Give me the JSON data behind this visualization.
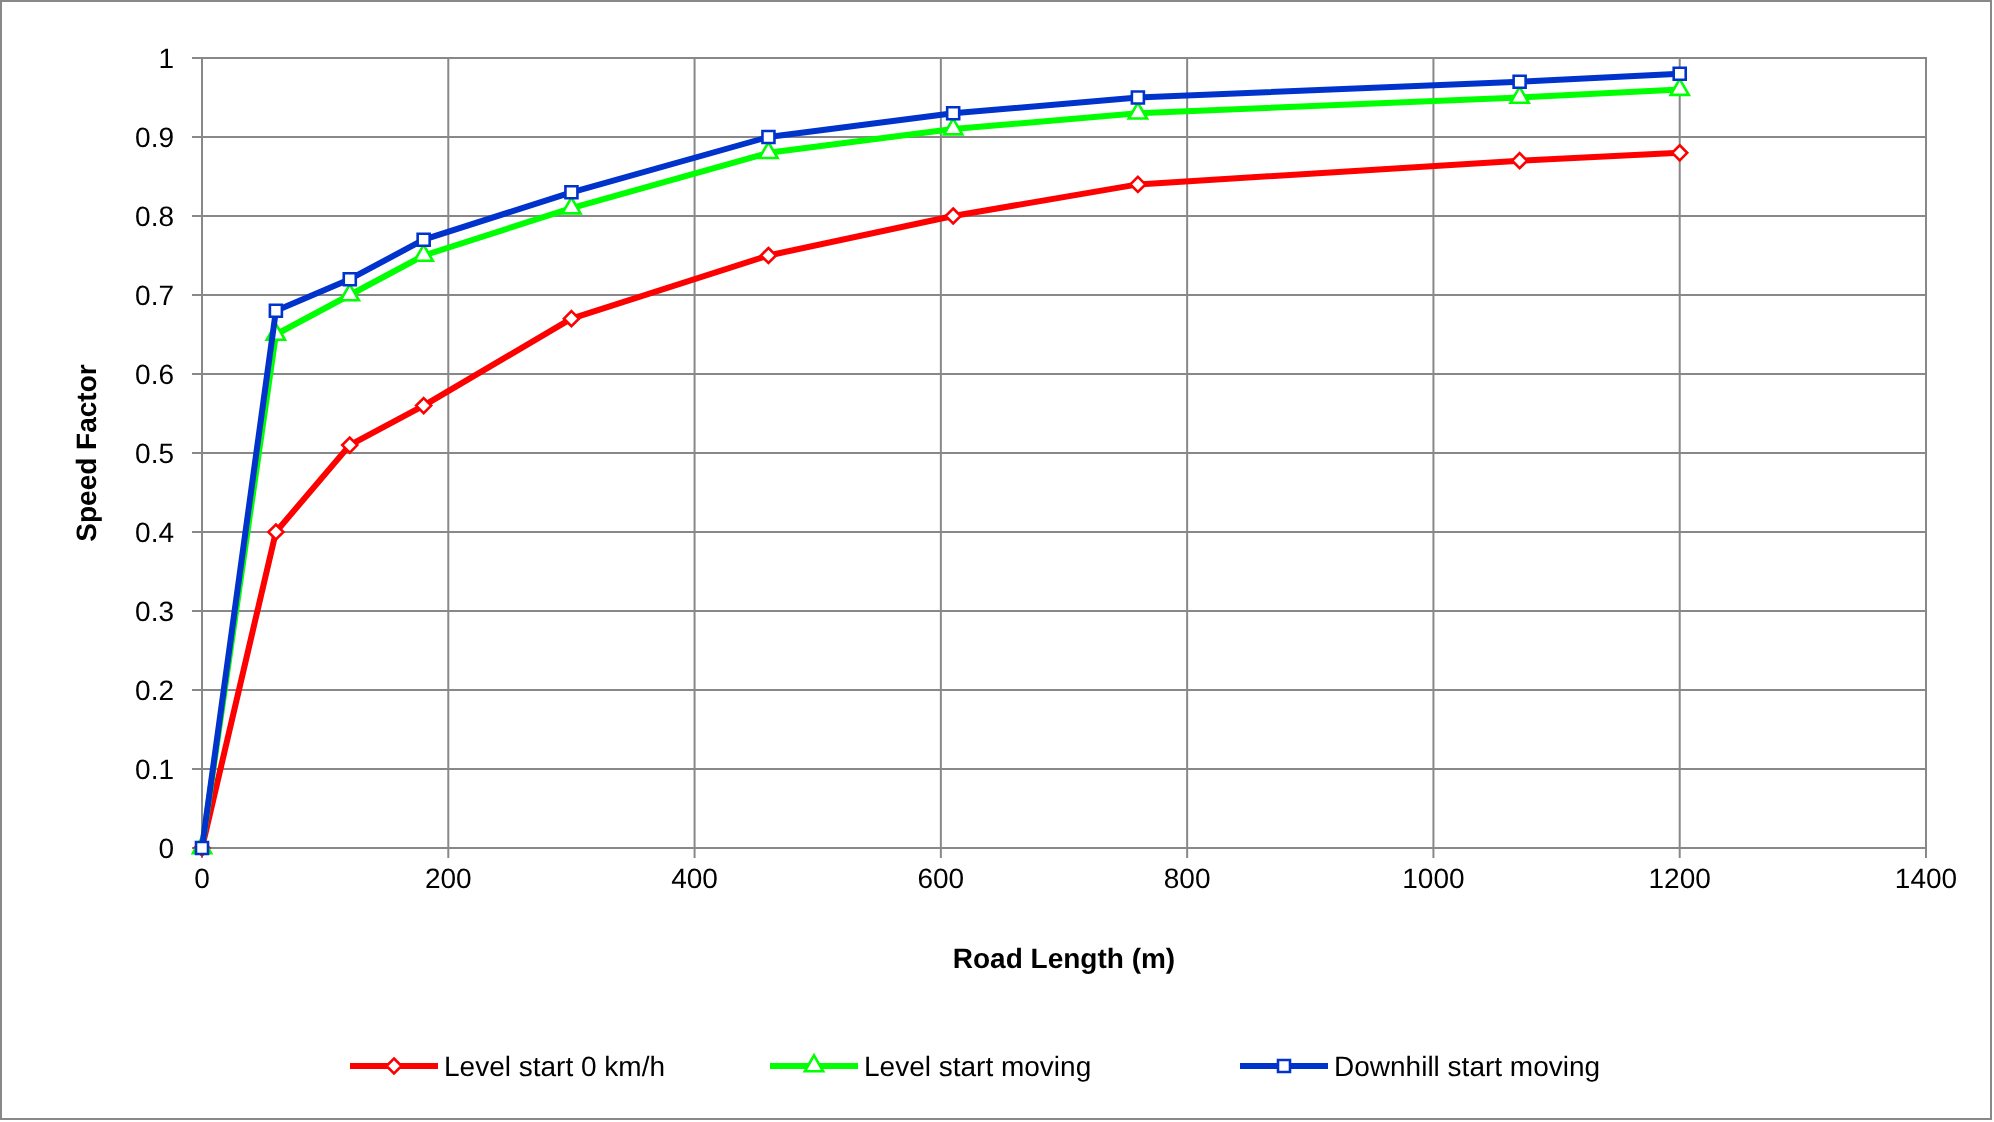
{
  "chart_data": {
    "type": "line",
    "xlabel": "Road Length (m)",
    "ylabel": "Speed Factor",
    "x": [
      0,
      60,
      120,
      180,
      300,
      460,
      610,
      760,
      1070,
      1200
    ],
    "xlim": [
      0,
      1400
    ],
    "xticks": [
      0,
      200,
      400,
      600,
      800,
      1000,
      1200,
      1400
    ],
    "ylim": [
      0,
      1
    ],
    "yticks": [
      0,
      0.1,
      0.2,
      0.3,
      0.4,
      0.5,
      0.6,
      0.7,
      0.8,
      0.9,
      1
    ],
    "grid": true,
    "legend": "bottom",
    "line_style": "solid",
    "series": [
      {
        "name": "Level start 0 km/h",
        "color": "#ff0000",
        "marker": "diamond",
        "values": [
          0,
          0.4,
          0.51,
          0.56,
          0.67,
          0.75,
          0.8,
          0.84,
          0.87,
          0.88
        ]
      },
      {
        "name": "Level start moving",
        "color": "#00ff00",
        "marker": "triangle",
        "values": [
          0,
          0.65,
          0.7,
          0.75,
          0.81,
          0.88,
          0.91,
          0.93,
          0.95,
          0.96
        ]
      },
      {
        "name": "Downhill start moving",
        "color": "#0033cc",
        "marker": "square",
        "values": [
          0,
          0.68,
          0.72,
          0.77,
          0.83,
          0.9,
          0.93,
          0.95,
          0.97,
          0.98
        ]
      }
    ]
  }
}
